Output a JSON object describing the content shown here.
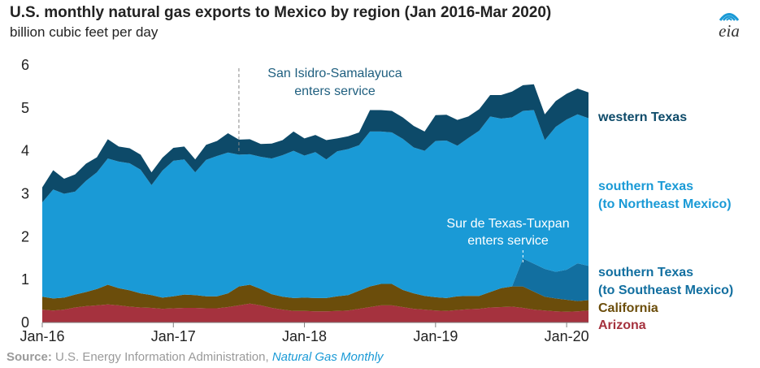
{
  "header": {
    "title": "U.S. monthly natural gas exports to Mexico by region (Jan 2016-Mar 2020)",
    "subtitle": "billion cubic feet per day"
  },
  "logo": {
    "text": "eia",
    "icon": "eia-logo"
  },
  "source": {
    "label": "Source:",
    "text": "U.S. Energy Information Administration,",
    "publication": "Natural Gas Monthly"
  },
  "colors": {
    "arizona": "#a5323e",
    "california": "#6b4d0b",
    "se_mexico": "#126fa0",
    "ne_mexico": "#1a9ad6",
    "western_texas": "#0d4a69"
  },
  "chart_data": {
    "type": "area",
    "stacked": true,
    "title": "U.S. monthly natural gas exports to Mexico by region (Jan 2016-Mar 2020)",
    "ylabel": "billion cubic feet per day",
    "ylim": [
      0,
      6
    ],
    "yticks": [
      "0",
      "1",
      "2",
      "3",
      "4",
      "5",
      "6"
    ],
    "xlim": [
      "2016-01",
      "2020-03"
    ],
    "xticks": [
      {
        "label": "Jan-16",
        "date": "2016-01"
      },
      {
        "label": "Jan-17",
        "date": "2017-01"
      },
      {
        "label": "Jan-18",
        "date": "2018-01"
      },
      {
        "label": "Jan-19",
        "date": "2019-01"
      },
      {
        "label": "Jan-20",
        "date": "2020-01"
      }
    ],
    "grid": false,
    "months": [
      "2016-01",
      "2016-02",
      "2016-03",
      "2016-04",
      "2016-05",
      "2016-06",
      "2016-07",
      "2016-08",
      "2016-09",
      "2016-10",
      "2016-11",
      "2016-12",
      "2017-01",
      "2017-02",
      "2017-03",
      "2017-04",
      "2017-05",
      "2017-06",
      "2017-07",
      "2017-08",
      "2017-09",
      "2017-10",
      "2017-11",
      "2017-12",
      "2018-01",
      "2018-02",
      "2018-03",
      "2018-04",
      "2018-05",
      "2018-06",
      "2018-07",
      "2018-08",
      "2018-09",
      "2018-10",
      "2018-11",
      "2018-12",
      "2019-01",
      "2019-02",
      "2019-03",
      "2019-04",
      "2019-05",
      "2019-06",
      "2019-07",
      "2019-08",
      "2019-09",
      "2019-10",
      "2019-11",
      "2019-12",
      "2020-01",
      "2020-02",
      "2020-03"
    ],
    "series": [
      {
        "name": "Arizona",
        "key": "arizona",
        "values": [
          0.3,
          0.28,
          0.3,
          0.35,
          0.38,
          0.4,
          0.42,
          0.4,
          0.37,
          0.35,
          0.34,
          0.32,
          0.33,
          0.34,
          0.34,
          0.33,
          0.33,
          0.36,
          0.4,
          0.44,
          0.4,
          0.34,
          0.3,
          0.27,
          0.27,
          0.26,
          0.26,
          0.27,
          0.28,
          0.32,
          0.36,
          0.4,
          0.4,
          0.36,
          0.32,
          0.3,
          0.28,
          0.27,
          0.29,
          0.31,
          0.32,
          0.35,
          0.36,
          0.37,
          0.34,
          0.3,
          0.28,
          0.26,
          0.25,
          0.26,
          0.28
        ]
      },
      {
        "name": "California",
        "key": "california",
        "values": [
          0.3,
          0.28,
          0.28,
          0.3,
          0.33,
          0.38,
          0.46,
          0.4,
          0.38,
          0.33,
          0.3,
          0.26,
          0.28,
          0.31,
          0.3,
          0.28,
          0.28,
          0.32,
          0.44,
          0.44,
          0.38,
          0.32,
          0.3,
          0.3,
          0.31,
          0.31,
          0.31,
          0.34,
          0.36,
          0.42,
          0.48,
          0.5,
          0.5,
          0.4,
          0.36,
          0.32,
          0.31,
          0.3,
          0.32,
          0.31,
          0.3,
          0.36,
          0.44,
          0.47,
          0.5,
          0.42,
          0.32,
          0.3,
          0.28,
          0.24,
          0.24
        ]
      },
      {
        "name": "southern Texas (to Southeast Mexico)",
        "key": "se_mexico",
        "values": [
          0,
          0,
          0,
          0,
          0,
          0,
          0,
          0,
          0,
          0,
          0,
          0,
          0,
          0,
          0,
          0,
          0,
          0,
          0,
          0,
          0,
          0,
          0,
          0,
          0,
          0,
          0,
          0,
          0,
          0,
          0,
          0,
          0,
          0,
          0,
          0,
          0,
          0,
          0,
          0,
          0,
          0,
          0,
          0,
          0.65,
          0.65,
          0.65,
          0.62,
          0.7,
          0.88,
          0.8
        ]
      },
      {
        "name": "southern Texas (to Northeast Mexico)",
        "key": "ne_mexico",
        "values": [
          2.2,
          2.54,
          2.42,
          2.4,
          2.59,
          2.72,
          2.94,
          2.95,
          2.96,
          2.88,
          2.56,
          2.96,
          3.16,
          3.15,
          2.86,
          3.18,
          3.27,
          3.28,
          3.07,
          3.04,
          3.08,
          3.16,
          3.3,
          3.43,
          3.31,
          3.4,
          3.23,
          3.38,
          3.4,
          3.39,
          3.61,
          3.55,
          3.53,
          3.52,
          3.4,
          3.38,
          3.64,
          3.67,
          3.51,
          3.68,
          3.85,
          4.09,
          3.95,
          3.94,
          3.44,
          3.58,
          3.0,
          3.38,
          3.5,
          3.47,
          3.44
        ]
      },
      {
        "name": "western Texas",
        "key": "western_texas",
        "values": [
          0.35,
          0.45,
          0.35,
          0.4,
          0.4,
          0.35,
          0.45,
          0.35,
          0.35,
          0.35,
          0.3,
          0.3,
          0.3,
          0.3,
          0.3,
          0.35,
          0.35,
          0.45,
          0.35,
          0.35,
          0.3,
          0.35,
          0.35,
          0.45,
          0.4,
          0.4,
          0.45,
          0.3,
          0.3,
          0.3,
          0.5,
          0.5,
          0.5,
          0.5,
          0.5,
          0.45,
          0.6,
          0.6,
          0.6,
          0.5,
          0.5,
          0.5,
          0.55,
          0.6,
          0.6,
          0.6,
          0.6,
          0.6,
          0.6,
          0.6,
          0.6
        ]
      }
    ],
    "series_labels": [
      {
        "key": "western_texas",
        "lines": [
          "western Texas"
        ]
      },
      {
        "key": "ne_mexico",
        "lines": [
          "southern Texas",
          "(to Northeast Mexico)"
        ]
      },
      {
        "key": "se_mexico",
        "lines": [
          "southern Texas",
          "(to Southeast Mexico)"
        ]
      },
      {
        "key": "california",
        "lines": [
          "California"
        ]
      },
      {
        "key": "arizona",
        "lines": [
          "Arizona"
        ]
      }
    ],
    "annotations": [
      {
        "date": "2017-07",
        "lines": [
          "San Isidro-Samalayuca",
          "enters service"
        ]
      },
      {
        "date": "2019-09",
        "lines": [
          "Sur de Texas-Tuxpan",
          "enters service"
        ]
      }
    ]
  }
}
